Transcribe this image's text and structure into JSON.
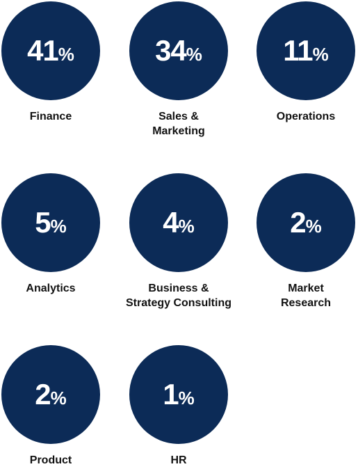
{
  "chart_data": {
    "type": "stat-circles",
    "categories": [
      "Finance",
      "Sales &\nMarketing",
      "Operations",
      "Analytics",
      "Business &\nStrategy Consulting",
      "Market\nResearch",
      "Product",
      "HR"
    ],
    "values": [
      41,
      34,
      11,
      5,
      4,
      2,
      2,
      1
    ],
    "value_labels": [
      "41%",
      "34%",
      "11%",
      "5%",
      "4%",
      "2%",
      "2%",
      "1%"
    ],
    "color": "#0c2b57"
  }
}
